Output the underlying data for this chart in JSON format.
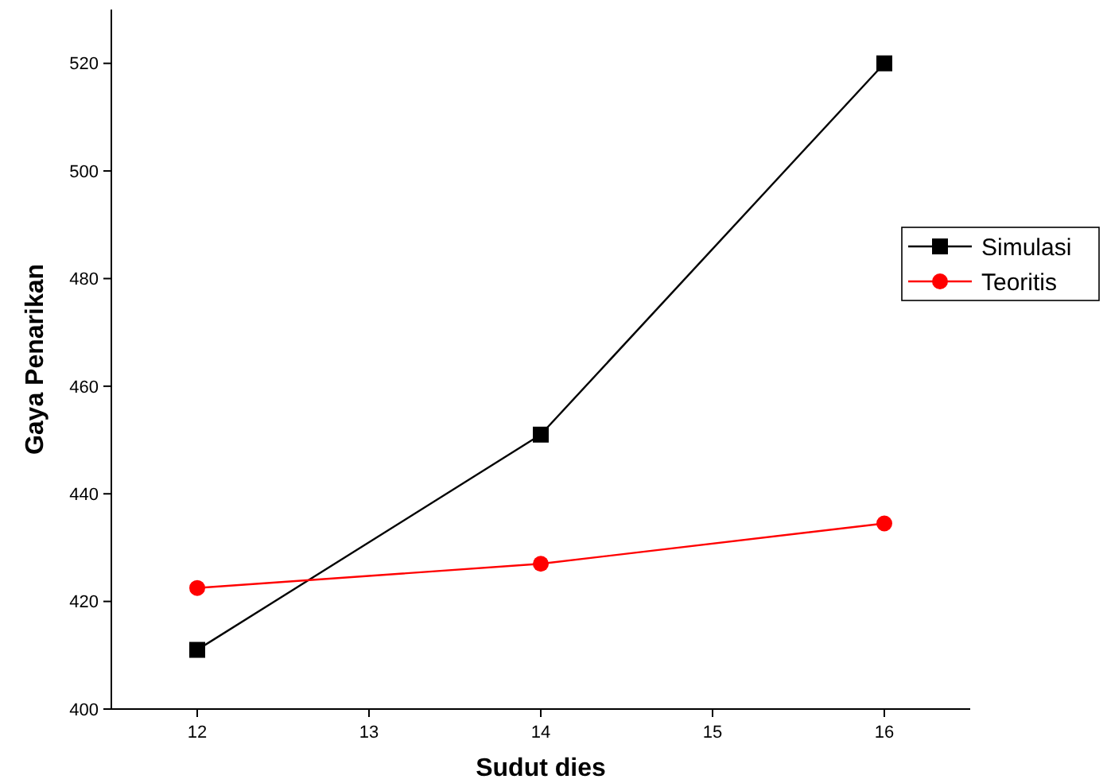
{
  "chart_data": {
    "type": "line",
    "xlabel": "Sudut dies",
    "ylabel": "Gaya Penarikan",
    "x": [
      12,
      14,
      16
    ],
    "series": [
      {
        "name": "Simulasi",
        "color": "#000000",
        "marker": "square",
        "values": [
          411,
          451,
          520
        ]
      },
      {
        "name": "Teoritis",
        "color": "#ff0000",
        "marker": "circle",
        "values": [
          422.5,
          427,
          434.5
        ]
      }
    ],
    "xlim": [
      11.5,
      16.5
    ],
    "xticks": [
      12,
      13,
      14,
      15,
      16
    ],
    "ylim": [
      400,
      530
    ],
    "yticks": [
      400,
      420,
      440,
      460,
      480,
      500,
      520
    ],
    "grid": false,
    "legend": "right"
  }
}
